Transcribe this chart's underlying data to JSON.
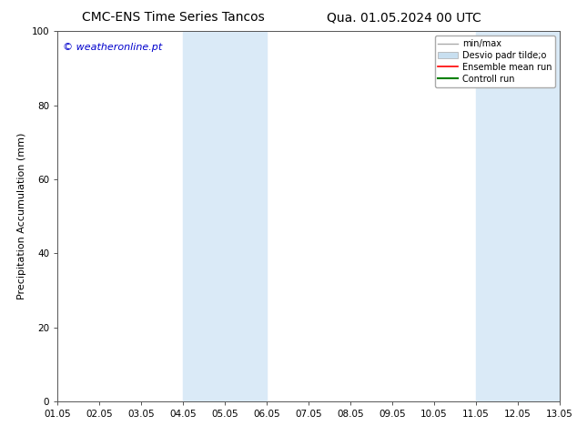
{
  "title_left": "CMC-ENS Time Series Tancos",
  "title_right": "Qua. 01.05.2024 00 UTC",
  "ylabel": "Precipitation Accumulation (mm)",
  "xlabel": "",
  "xlim": [
    1.05,
    13.05
  ],
  "ylim": [
    0,
    100
  ],
  "xticks": [
    1.05,
    2.05,
    3.05,
    4.05,
    5.05,
    6.05,
    7.05,
    8.05,
    9.05,
    10.05,
    11.05,
    12.05,
    13.05
  ],
  "xticklabels": [
    "01.05",
    "02.05",
    "03.05",
    "04.05",
    "05.05",
    "06.05",
    "07.05",
    "08.05",
    "09.05",
    "10.05",
    "11.05",
    "12.05",
    "13.05"
  ],
  "yticks": [
    0,
    20,
    40,
    60,
    80,
    100
  ],
  "shaded_regions": [
    {
      "xmin": 4.05,
      "xmax": 6.05
    },
    {
      "xmin": 11.05,
      "xmax": 13.05
    }
  ],
  "shaded_color": "#daeaf7",
  "watermark_text": "© weatheronline.pt",
  "watermark_color": "#0000cc",
  "legend_labels": [
    "min/max",
    "Desvio padr tilde;o",
    "Ensemble mean run",
    "Controll run"
  ],
  "legend_colors_line": [
    "#aaaaaa",
    "#c8dff0",
    "#ff0000",
    "#008000"
  ],
  "background_color": "#ffffff",
  "plot_bg_color": "#ffffff",
  "title_fontsize": 10,
  "tick_fontsize": 7.5,
  "ylabel_fontsize": 8,
  "legend_fontsize": 7,
  "watermark_fontsize": 8
}
